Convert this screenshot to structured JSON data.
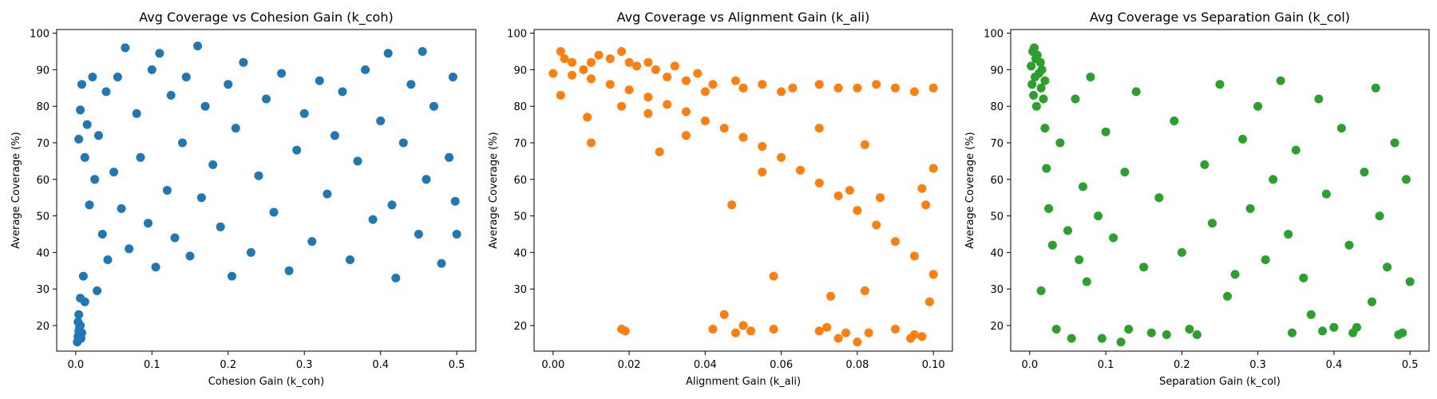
{
  "chart_data": [
    {
      "type": "scatter",
      "title": "Avg Coverage vs Cohesion Gain (k_coh)",
      "xlabel": "Cohesion Gain (k_coh)",
      "ylabel": "Average Coverage (%)",
      "xlim": [
        -0.025,
        0.525
      ],
      "ylim": [
        13,
        101
      ],
      "xticks": [
        0.0,
        0.1,
        0.2,
        0.3,
        0.4,
        0.5
      ],
      "xticklabels": [
        "0.0",
        "0.1",
        "0.2",
        "0.3",
        "0.4",
        "0.5"
      ],
      "yticks": [
        20,
        30,
        40,
        50,
        60,
        70,
        80,
        90,
        100
      ],
      "yticklabels": [
        "20",
        "30",
        "40",
        "50",
        "60",
        "70",
        "80",
        "90",
        "100"
      ],
      "color": "#1f77b4",
      "grid": false,
      "points": [
        [
          0.002,
          15.5
        ],
        [
          0.003,
          17
        ],
        [
          0.004,
          18.5
        ],
        [
          0.005,
          19.5
        ],
        [
          0.006,
          20
        ],
        [
          0.003,
          21
        ],
        [
          0.007,
          16.5
        ],
        [
          0.008,
          18
        ],
        [
          0.004,
          23
        ],
        [
          0.006,
          27.5
        ],
        [
          0.01,
          33.5
        ],
        [
          0.012,
          26.5
        ],
        [
          0.028,
          29.5
        ],
        [
          0.004,
          71
        ],
        [
          0.006,
          79
        ],
        [
          0.008,
          86
        ],
        [
          0.012,
          66
        ],
        [
          0.015,
          75
        ],
        [
          0.018,
          53
        ],
        [
          0.022,
          88
        ],
        [
          0.025,
          60
        ],
        [
          0.03,
          72
        ],
        [
          0.035,
          45
        ],
        [
          0.04,
          84
        ],
        [
          0.042,
          38
        ],
        [
          0.05,
          62
        ],
        [
          0.055,
          88
        ],
        [
          0.06,
          52
        ],
        [
          0.065,
          96
        ],
        [
          0.07,
          41
        ],
        [
          0.08,
          78
        ],
        [
          0.085,
          66
        ],
        [
          0.095,
          48
        ],
        [
          0.1,
          90
        ],
        [
          0.105,
          36
        ],
        [
          0.11,
          94.5
        ],
        [
          0.12,
          57
        ],
        [
          0.125,
          83
        ],
        [
          0.13,
          44
        ],
        [
          0.14,
          70
        ],
        [
          0.145,
          88
        ],
        [
          0.15,
          39
        ],
        [
          0.16,
          96.5
        ],
        [
          0.165,
          55
        ],
        [
          0.17,
          80
        ],
        [
          0.18,
          64
        ],
        [
          0.19,
          47
        ],
        [
          0.2,
          86
        ],
        [
          0.205,
          33.5
        ],
        [
          0.21,
          74
        ],
        [
          0.22,
          92
        ],
        [
          0.23,
          40
        ],
        [
          0.24,
          61
        ],
        [
          0.25,
          82
        ],
        [
          0.26,
          51
        ],
        [
          0.27,
          89
        ],
        [
          0.28,
          35
        ],
        [
          0.29,
          68
        ],
        [
          0.3,
          78
        ],
        [
          0.31,
          43
        ],
        [
          0.32,
          87
        ],
        [
          0.33,
          56
        ],
        [
          0.34,
          72
        ],
        [
          0.35,
          84
        ],
        [
          0.36,
          38
        ],
        [
          0.37,
          65
        ],
        [
          0.38,
          90
        ],
        [
          0.39,
          49
        ],
        [
          0.4,
          76
        ],
        [
          0.41,
          94.5
        ],
        [
          0.415,
          53
        ],
        [
          0.42,
          33
        ],
        [
          0.43,
          70
        ],
        [
          0.44,
          86
        ],
        [
          0.45,
          45
        ],
        [
          0.455,
          95
        ],
        [
          0.46,
          60
        ],
        [
          0.47,
          80
        ],
        [
          0.48,
          37
        ],
        [
          0.49,
          66
        ],
        [
          0.495,
          88
        ],
        [
          0.498,
          54
        ],
        [
          0.5,
          45
        ]
      ]
    },
    {
      "type": "scatter",
      "title": "Avg Coverage vs Alignment Gain (k_ali)",
      "xlabel": "Alignment Gain (k_ali)",
      "ylabel": "Average Coverage (%)",
      "xlim": [
        -0.005,
        0.105
      ],
      "ylim": [
        13,
        101
      ],
      "xticks": [
        0.0,
        0.02,
        0.04,
        0.06,
        0.08,
        0.1
      ],
      "xticklabels": [
        "0.00",
        "0.02",
        "0.04",
        "0.06",
        "0.08",
        "0.10"
      ],
      "yticks": [
        20,
        30,
        40,
        50,
        60,
        70,
        80,
        90,
        100
      ],
      "yticklabels": [
        "20",
        "30",
        "40",
        "50",
        "60",
        "70",
        "80",
        "90",
        "100"
      ],
      "color": "#ff7f0e",
      "grid": false,
      "points": [
        [
          0.0,
          89
        ],
        [
          0.005,
          88.5
        ],
        [
          0.01,
          87.5
        ],
        [
          0.015,
          86
        ],
        [
          0.02,
          84.5
        ],
        [
          0.025,
          82.5
        ],
        [
          0.03,
          80.5
        ],
        [
          0.035,
          78.5
        ],
        [
          0.04,
          76
        ],
        [
          0.045,
          74
        ],
        [
          0.05,
          71.5
        ],
        [
          0.055,
          69
        ],
        [
          0.06,
          66
        ],
        [
          0.065,
          62.5
        ],
        [
          0.07,
          59
        ],
        [
          0.075,
          55.5
        ],
        [
          0.08,
          51.5
        ],
        [
          0.085,
          47.5
        ],
        [
          0.09,
          43
        ],
        [
          0.095,
          39
        ],
        [
          0.1,
          34
        ],
        [
          0.002,
          95
        ],
        [
          0.003,
          93
        ],
        [
          0.005,
          92
        ],
        [
          0.008,
          90
        ],
        [
          0.01,
          92
        ],
        [
          0.012,
          94
        ],
        [
          0.015,
          93
        ],
        [
          0.018,
          95
        ],
        [
          0.02,
          92
        ],
        [
          0.022,
          91
        ],
        [
          0.025,
          92
        ],
        [
          0.027,
          90
        ],
        [
          0.03,
          88
        ],
        [
          0.032,
          91
        ],
        [
          0.035,
          87
        ],
        [
          0.038,
          89
        ],
        [
          0.04,
          84
        ],
        [
          0.042,
          86
        ],
        [
          0.048,
          87
        ],
        [
          0.05,
          85
        ],
        [
          0.055,
          86
        ],
        [
          0.06,
          84
        ],
        [
          0.063,
          85
        ],
        [
          0.07,
          86
        ],
        [
          0.075,
          85
        ],
        [
          0.08,
          85
        ],
        [
          0.085,
          86
        ],
        [
          0.09,
          85
        ],
        [
          0.095,
          84
        ],
        [
          0.1,
          85
        ],
        [
          0.002,
          83
        ],
        [
          0.009,
          77
        ],
        [
          0.01,
          70
        ],
        [
          0.018,
          80
        ],
        [
          0.025,
          78
        ],
        [
          0.028,
          67.5
        ],
        [
          0.035,
          72
        ],
        [
          0.047,
          53
        ],
        [
          0.055,
          62
        ],
        [
          0.058,
          33.5
        ],
        [
          0.07,
          74
        ],
        [
          0.073,
          28
        ],
        [
          0.078,
          57
        ],
        [
          0.082,
          69.5
        ],
        [
          0.082,
          29.5
        ],
        [
          0.086,
          55
        ],
        [
          0.097,
          57.5
        ],
        [
          0.098,
          53
        ],
        [
          0.099,
          26.5
        ],
        [
          0.1,
          63
        ],
        [
          0.018,
          19
        ],
        [
          0.019,
          18.5
        ],
        [
          0.045,
          23
        ],
        [
          0.042,
          19
        ],
        [
          0.048,
          18
        ],
        [
          0.05,
          20
        ],
        [
          0.052,
          18.5
        ],
        [
          0.058,
          19
        ],
        [
          0.07,
          18.5
        ],
        [
          0.072,
          19.5
        ],
        [
          0.075,
          16.5
        ],
        [
          0.077,
          18
        ],
        [
          0.08,
          15.5
        ],
        [
          0.083,
          18
        ],
        [
          0.09,
          19
        ],
        [
          0.094,
          16.5
        ],
        [
          0.095,
          17.5
        ],
        [
          0.097,
          17
        ]
      ]
    },
    {
      "type": "scatter",
      "title": "Avg Coverage vs Separation Gain (k_col)",
      "xlabel": "Separation Gain (k_col)",
      "ylabel": "Average Coverage (%)",
      "xlim": [
        -0.025,
        0.525
      ],
      "ylim": [
        13,
        101
      ],
      "xticks": [
        0.0,
        0.1,
        0.2,
        0.3,
        0.4,
        0.5
      ],
      "xticklabels": [
        "0.0",
        "0.1",
        "0.2",
        "0.3",
        "0.4",
        "0.5"
      ],
      "yticks": [
        20,
        30,
        40,
        50,
        60,
        70,
        80,
        90,
        100
      ],
      "yticklabels": [
        "20",
        "30",
        "40",
        "50",
        "60",
        "70",
        "80",
        "90",
        "100"
      ],
      "color": "#2ca02c",
      "grid": false,
      "points": [
        [
          0.002,
          91
        ],
        [
          0.004,
          95
        ],
        [
          0.006,
          96
        ],
        [
          0.008,
          93
        ],
        [
          0.01,
          94
        ],
        [
          0.012,
          89
        ],
        [
          0.014,
          92
        ],
        [
          0.016,
          90
        ],
        [
          0.003,
          86
        ],
        [
          0.005,
          83
        ],
        [
          0.007,
          88
        ],
        [
          0.009,
          80
        ],
        [
          0.015,
          85
        ],
        [
          0.018,
          82
        ],
        [
          0.02,
          87
        ],
        [
          0.015,
          29.5
        ],
        [
          0.02,
          74
        ],
        [
          0.022,
          63
        ],
        [
          0.025,
          52
        ],
        [
          0.03,
          42
        ],
        [
          0.035,
          19
        ],
        [
          0.04,
          70
        ],
        [
          0.05,
          46
        ],
        [
          0.055,
          16.5
        ],
        [
          0.06,
          82
        ],
        [
          0.065,
          38
        ],
        [
          0.07,
          58
        ],
        [
          0.075,
          32
        ],
        [
          0.08,
          88
        ],
        [
          0.09,
          50
        ],
        [
          0.095,
          16.5
        ],
        [
          0.1,
          73
        ],
        [
          0.11,
          44
        ],
        [
          0.12,
          15.5
        ],
        [
          0.125,
          62
        ],
        [
          0.13,
          19
        ],
        [
          0.14,
          84
        ],
        [
          0.15,
          36
        ],
        [
          0.16,
          18
        ],
        [
          0.17,
          55
        ],
        [
          0.18,
          17.5
        ],
        [
          0.19,
          76
        ],
        [
          0.2,
          40
        ],
        [
          0.21,
          19
        ],
        [
          0.22,
          17.5
        ],
        [
          0.23,
          64
        ],
        [
          0.24,
          48
        ],
        [
          0.25,
          86
        ],
        [
          0.26,
          28
        ],
        [
          0.27,
          34
        ],
        [
          0.28,
          71
        ],
        [
          0.29,
          52
        ],
        [
          0.3,
          80
        ],
        [
          0.31,
          38
        ],
        [
          0.32,
          60
        ],
        [
          0.33,
          87
        ],
        [
          0.34,
          45
        ],
        [
          0.345,
          18
        ],
        [
          0.35,
          68
        ],
        [
          0.36,
          33
        ],
        [
          0.37,
          23
        ],
        [
          0.38,
          82
        ],
        [
          0.385,
          18.5
        ],
        [
          0.39,
          56
        ],
        [
          0.4,
          19.5
        ],
        [
          0.41,
          74
        ],
        [
          0.42,
          42
        ],
        [
          0.425,
          18
        ],
        [
          0.43,
          19.5
        ],
        [
          0.44,
          62
        ],
        [
          0.45,
          26.5
        ],
        [
          0.455,
          85
        ],
        [
          0.46,
          50
        ],
        [
          0.47,
          36
        ],
        [
          0.48,
          70
        ],
        [
          0.485,
          17.5
        ],
        [
          0.49,
          18
        ],
        [
          0.495,
          60
        ],
        [
          0.5,
          32
        ]
      ]
    }
  ]
}
